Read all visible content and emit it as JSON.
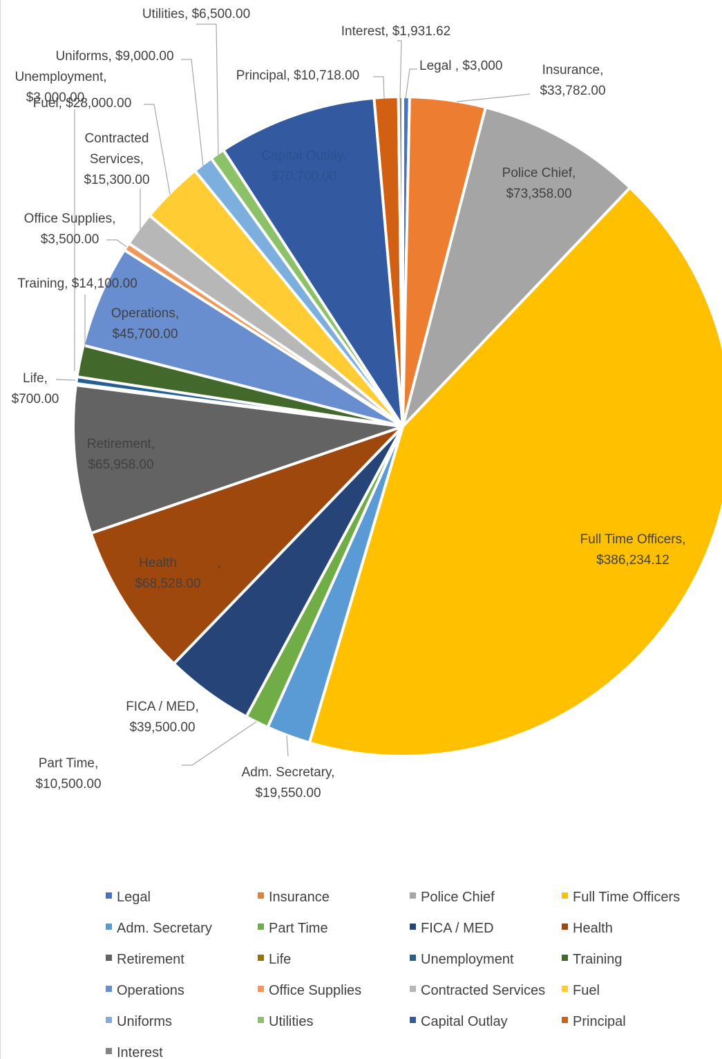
{
  "chart_data": {
    "type": "pie",
    "title": "",
    "legend_position": "bottom",
    "start_angle_deg": 0,
    "direction": "clockwise",
    "series": [
      {
        "name": "Legal",
        "value": 3000,
        "label": "Legal , $3,000",
        "color": "#4472c4"
      },
      {
        "name": "Insurance",
        "value": 33782,
        "label": "Insurance, $33,782.00",
        "color": "#ed7d31"
      },
      {
        "name": "Police Chief",
        "value": 73358,
        "label": "Police Chief, $73,358.00",
        "color": "#a5a5a5"
      },
      {
        "name": "Full Time Officers",
        "value": 386234.12,
        "label": "Full Time Officers, $386,234.12",
        "color": "#ffc000"
      },
      {
        "name": "Adm. Secretary",
        "value": 19550,
        "label": "Adm. Secretary, $19,550.00",
        "color": "#5b9bd5"
      },
      {
        "name": "Part Time",
        "value": 10500,
        "label": "Part Time, $10,500.00",
        "color": "#70ad47"
      },
      {
        "name": "FICA / MED",
        "value": 39500,
        "label": "FICA / MED, $39,500.00",
        "color": "#264478"
      },
      {
        "name": "Health",
        "value": 68528,
        "label": "Health, $68,528.00",
        "color": "#9e480e"
      },
      {
        "name": "Retirement",
        "value": 65958,
        "label": "Retirement, $65,958.00",
        "color": "#636363"
      },
      {
        "name": "Life",
        "value": 700,
        "label": "Life, $700.00",
        "color": "#997300"
      },
      {
        "name": "Unemployment",
        "value": 3000,
        "label": "Unemployment, $3,000.00",
        "color": "#255e91"
      },
      {
        "name": "Training",
        "value": 14100,
        "label": "Training, $14,100.00",
        "color": "#43682b"
      },
      {
        "name": "Operations",
        "value": 45700,
        "label": "Operations, $45,700.00",
        "color": "#698ed0"
      },
      {
        "name": "Office Supplies",
        "value": 3500,
        "label": "Office Supplies, $3,500.00",
        "color": "#f1975a"
      },
      {
        "name": "Contracted Services",
        "value": 15300,
        "label": "Contracted Services, $15,300.00",
        "color": "#b7b7b7"
      },
      {
        "name": "Fuel",
        "value": 28000,
        "label": "Fuel, $28,000.00",
        "color": "#ffcd33"
      },
      {
        "name": "Uniforms",
        "value": 9000,
        "label": "Uniforms, $9,000.00",
        "color": "#7cafdd"
      },
      {
        "name": "Utilities",
        "value": 6500,
        "label": "Utilities, $6,500.00",
        "color": "#8cc168"
      },
      {
        "name": "Capital Outlay",
        "value": 70700,
        "label": "Capital Outlay, $70,700.00",
        "color": "#335aa1"
      },
      {
        "name": "Principal",
        "value": 10718,
        "label": "Principal, $10,718.00",
        "color": "#d26012"
      },
      {
        "name": "Interest",
        "value": 1931.62,
        "label": "Interest, $1,931.62",
        "color": "#848484"
      }
    ]
  }
}
